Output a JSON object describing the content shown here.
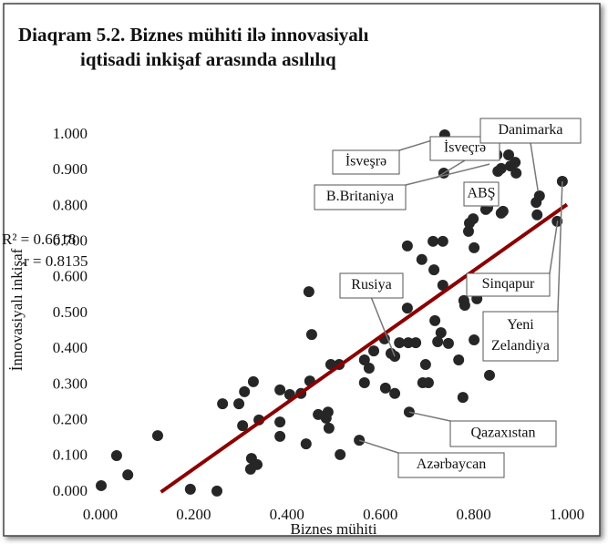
{
  "chart_data": {
    "type": "scatter",
    "title": [
      "Diaqram 5.2. Biznes mühiti ilə innovasiyalı",
      "iqtisadi inkişaf arasında asılılıq"
    ],
    "x_label": "Biznes mühiti",
    "y_label": "İnnovasiyalı inkişaf",
    "stats": [
      "R² = 0.6618",
      "r = 0.8135"
    ],
    "color": "#262626",
    "x": [
      0.002,
      0.035,
      0.059,
      0.123,
      0.193,
      0.25,
      0.262,
      0.297,
      0.309,
      0.328,
      0.305,
      0.324,
      0.322,
      0.336,
      0.34,
      0.385,
      0.385,
      0.385,
      0.406,
      0.43,
      0.441,
      0.449,
      0.447,
      0.453,
      0.467,
      0.484,
      0.488,
      0.49,
      0.494,
      0.512,
      0.514,
      0.566,
      0.576,
      0.566,
      0.586,
      0.609,
      0.611,
      0.623,
      0.631,
      0.631,
      0.641,
      0.658,
      0.658,
      0.66,
      0.676,
      0.689,
      0.697,
      0.703,
      0.691,
      0.715,
      0.713,
      0.717,
      0.723,
      0.73,
      0.734,
      0.734,
      0.746,
      0.738,
      0.736,
      0.768,
      0.777,
      0.779,
      0.781,
      0.789,
      0.791,
      0.799,
      0.801,
      0.801,
      0.807,
      0.826,
      0.83,
      0.83,
      0.834,
      0.85,
      0.859,
      0.863,
      0.852,
      0.859,
      0.875,
      0.879,
      0.889,
      0.891,
      0.934,
      0.941,
      0.936,
      0.99,
      0.979,
      0.555,
      0.662
    ],
    "y": [
      0.018,
      0.102,
      0.048,
      0.158,
      0.008,
      0.003,
      0.247,
      0.247,
      0.281,
      0.309,
      0.186,
      0.094,
      0.064,
      0.077,
      0.202,
      0.286,
      0.196,
      0.156,
      0.273,
      0.276,
      0.135,
      0.311,
      0.561,
      0.441,
      0.217,
      0.207,
      0.224,
      0.179,
      0.357,
      0.357,
      0.105,
      0.37,
      0.347,
      0.306,
      0.395,
      0.429,
      0.291,
      0.388,
      0.38,
      0.276,
      0.418,
      0.689,
      0.515,
      0.418,
      0.418,
      0.651,
      0.357,
      0.306,
      0.306,
      0.622,
      0.702,
      0.48,
      0.421,
      0.446,
      0.702,
      0.579,
      0.416,
      1.0,
      0.893,
      0.37,
      0.265,
      0.536,
      0.523,
      0.73,
      0.753,
      0.765,
      0.684,
      0.426,
      0.541,
      0.791,
      0.796,
      0.837,
      0.327,
      0.944,
      0.781,
      0.786,
      0.898,
      0.906,
      0.944,
      0.913,
      0.923,
      0.893,
      0.811,
      0.829,
      0.776,
      0.87,
      0.758,
      0.145,
      0.224
    ],
    "trendline": {
      "x": [
        0.13,
        1.0
      ],
      "y": [
        0,
        0.805
      ],
      "color": "#8b0000"
    },
    "annotations": [
      {
        "text": [
          "İsveşrə"
        ],
        "x": 0.724,
        "y": 0.99
      },
      {
        "text": [
          "İsveçrə"
        ],
        "x": 0.72,
        "y": 0.88
      },
      {
        "text": [
          "B.Britaniya"
        ],
        "x": 0.834,
        "y": 0.918
      },
      {
        "text": [
          "Danimarka"
        ],
        "x": 0.938,
        "y": 0.842
      },
      {
        "text": [
          "ABŞ"
        ],
        "x": 0.84,
        "y": 0.8
      },
      {
        "text": [
          "Sinqapur"
        ],
        "x": 0.98,
        "y": 0.76
      },
      {
        "text": [
          "Yeni",
          "Zelandiya"
        ],
        "x": 0.99,
        "y": 0.87
      },
      {
        "text": [
          "Rusiya"
        ],
        "x": 0.631,
        "y": 0.38
      },
      {
        "text": [
          "Qazaxıstan"
        ],
        "x": 0.662,
        "y": 0.224
      },
      {
        "text": [
          "Azərbaycan"
        ],
        "x": 0.555,
        "y": 0.145
      }
    ],
    "xlim": [
      0,
      1
    ],
    "ylim": [
      0,
      1
    ],
    "xticks": [
      {
        "value": 0,
        "label": "0.000"
      },
      {
        "value": 0.2,
        "label": "0.200"
      },
      {
        "value": 0.4,
        "label": "0.400"
      },
      {
        "value": 0.6,
        "label": "0.600"
      },
      {
        "value": 0.8,
        "label": "0.800"
      },
      {
        "value": 1,
        "label": "1.000"
      }
    ],
    "yticks": [
      {
        "value": 0,
        "label": "0.000"
      },
      {
        "value": 0.1,
        "label": "0.100"
      },
      {
        "value": 0.2,
        "label": "0.200"
      },
      {
        "value": 0.3,
        "label": "0.300"
      },
      {
        "value": 0.4,
        "label": "0.400"
      },
      {
        "value": 0.5,
        "label": "0.500"
      },
      {
        "value": 0.6,
        "label": "0.600"
      },
      {
        "value": 0.7,
        "label": "0.700"
      },
      {
        "value": 0.8,
        "label": "0.800"
      },
      {
        "value": 0.9,
        "label": "0.900"
      },
      {
        "value": 1,
        "label": "1.000"
      }
    ]
  }
}
